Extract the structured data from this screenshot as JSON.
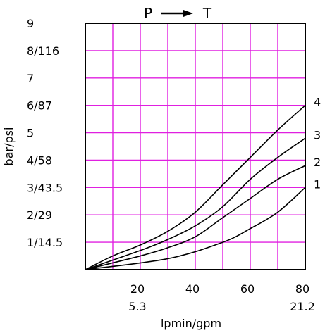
{
  "chart_data": {
    "type": "line",
    "title_from": "P",
    "title_to": "T",
    "xlabel": "lpmin/gpm",
    "ylabel": "bar/psi",
    "xlim": [
      0,
      80
    ],
    "ylim": [
      0,
      9
    ],
    "grid": true,
    "x_ticks": [
      {
        "value": 20,
        "label": "20",
        "sub": "5.3"
      },
      {
        "value": 40,
        "label": "40",
        "sub": ""
      },
      {
        "value": 60,
        "label": "60",
        "sub": ""
      },
      {
        "value": 80,
        "label": "80",
        "sub": "21.2"
      }
    ],
    "y_ticks": [
      {
        "value": 1,
        "label": "1/14.5"
      },
      {
        "value": 2,
        "label": "2/29"
      },
      {
        "value": 3,
        "label": "3/43.5"
      },
      {
        "value": 4,
        "label": "4/58"
      },
      {
        "value": 5,
        "label": "5"
      },
      {
        "value": 6,
        "label": "6/87"
      },
      {
        "value": 7,
        "label": "7"
      },
      {
        "value": 8,
        "label": "8/116"
      },
      {
        "value": 9,
        "label": "9"
      }
    ],
    "series": [
      {
        "name": "1",
        "x": [
          0,
          30,
          50,
          60,
          70,
          80
        ],
        "y": [
          0,
          0.4,
          1.0,
          1.5,
          2.1,
          3.0
        ]
      },
      {
        "name": "2",
        "x": [
          0,
          20,
          30,
          40,
          50,
          60,
          70,
          80
        ],
        "y": [
          0,
          0.5,
          0.8,
          1.2,
          1.9,
          2.6,
          3.3,
          3.8
        ]
      },
      {
        "name": "3",
        "x": [
          0,
          20,
          30,
          40,
          50,
          60,
          70,
          80
        ],
        "y": [
          0,
          0.7,
          1.1,
          1.6,
          2.3,
          3.3,
          4.1,
          4.8
        ]
      },
      {
        "name": "4",
        "x": [
          0,
          10,
          20,
          30,
          40,
          50,
          60,
          70,
          80
        ],
        "y": [
          0,
          0.5,
          0.9,
          1.4,
          2.1,
          3.1,
          4.1,
          5.1,
          6.0
        ]
      }
    ]
  }
}
